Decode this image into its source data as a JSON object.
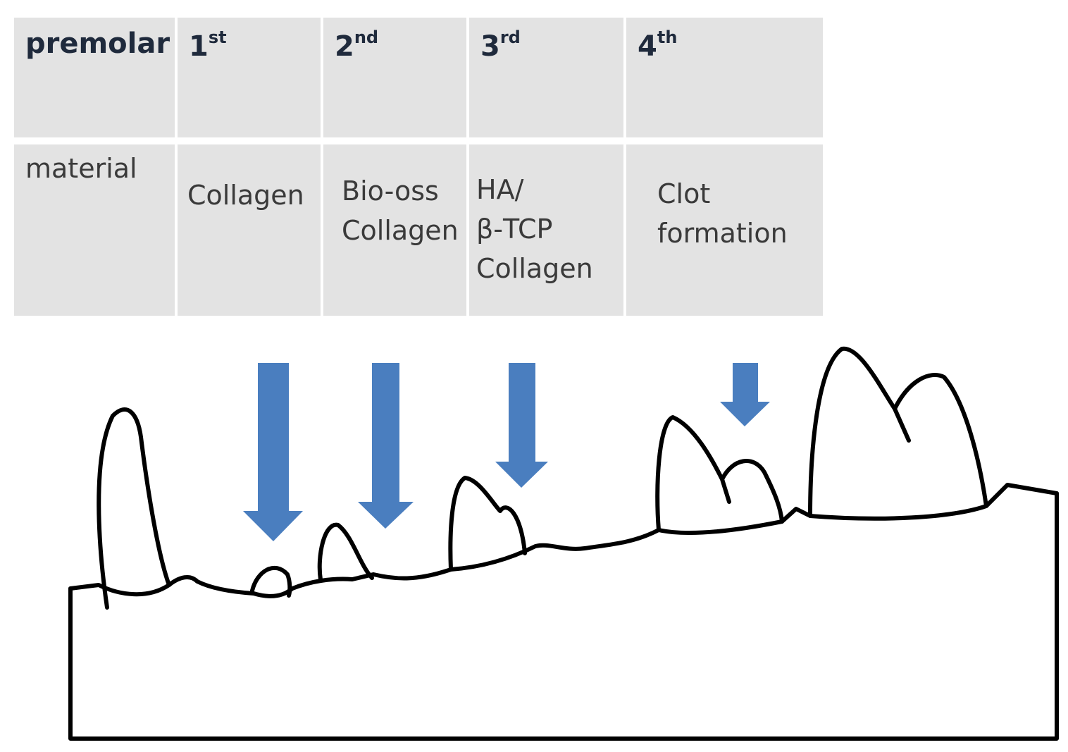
{
  "table": {
    "header": [
      {
        "text": "premolar"
      },
      {
        "number": "1",
        "suffix": "st"
      },
      {
        "number": "2",
        "suffix": "nd"
      },
      {
        "number": "3",
        "suffix": "rd"
      },
      {
        "number": "4",
        "suffix": "th"
      }
    ],
    "row_label": "material",
    "materials": [
      [
        "Collagen"
      ],
      [
        "Bio-oss",
        "Collagen"
      ],
      [
        "HA/",
        "β-TCP",
        "Collagen"
      ],
      [
        "Clot",
        "formation"
      ]
    ]
  }
}
